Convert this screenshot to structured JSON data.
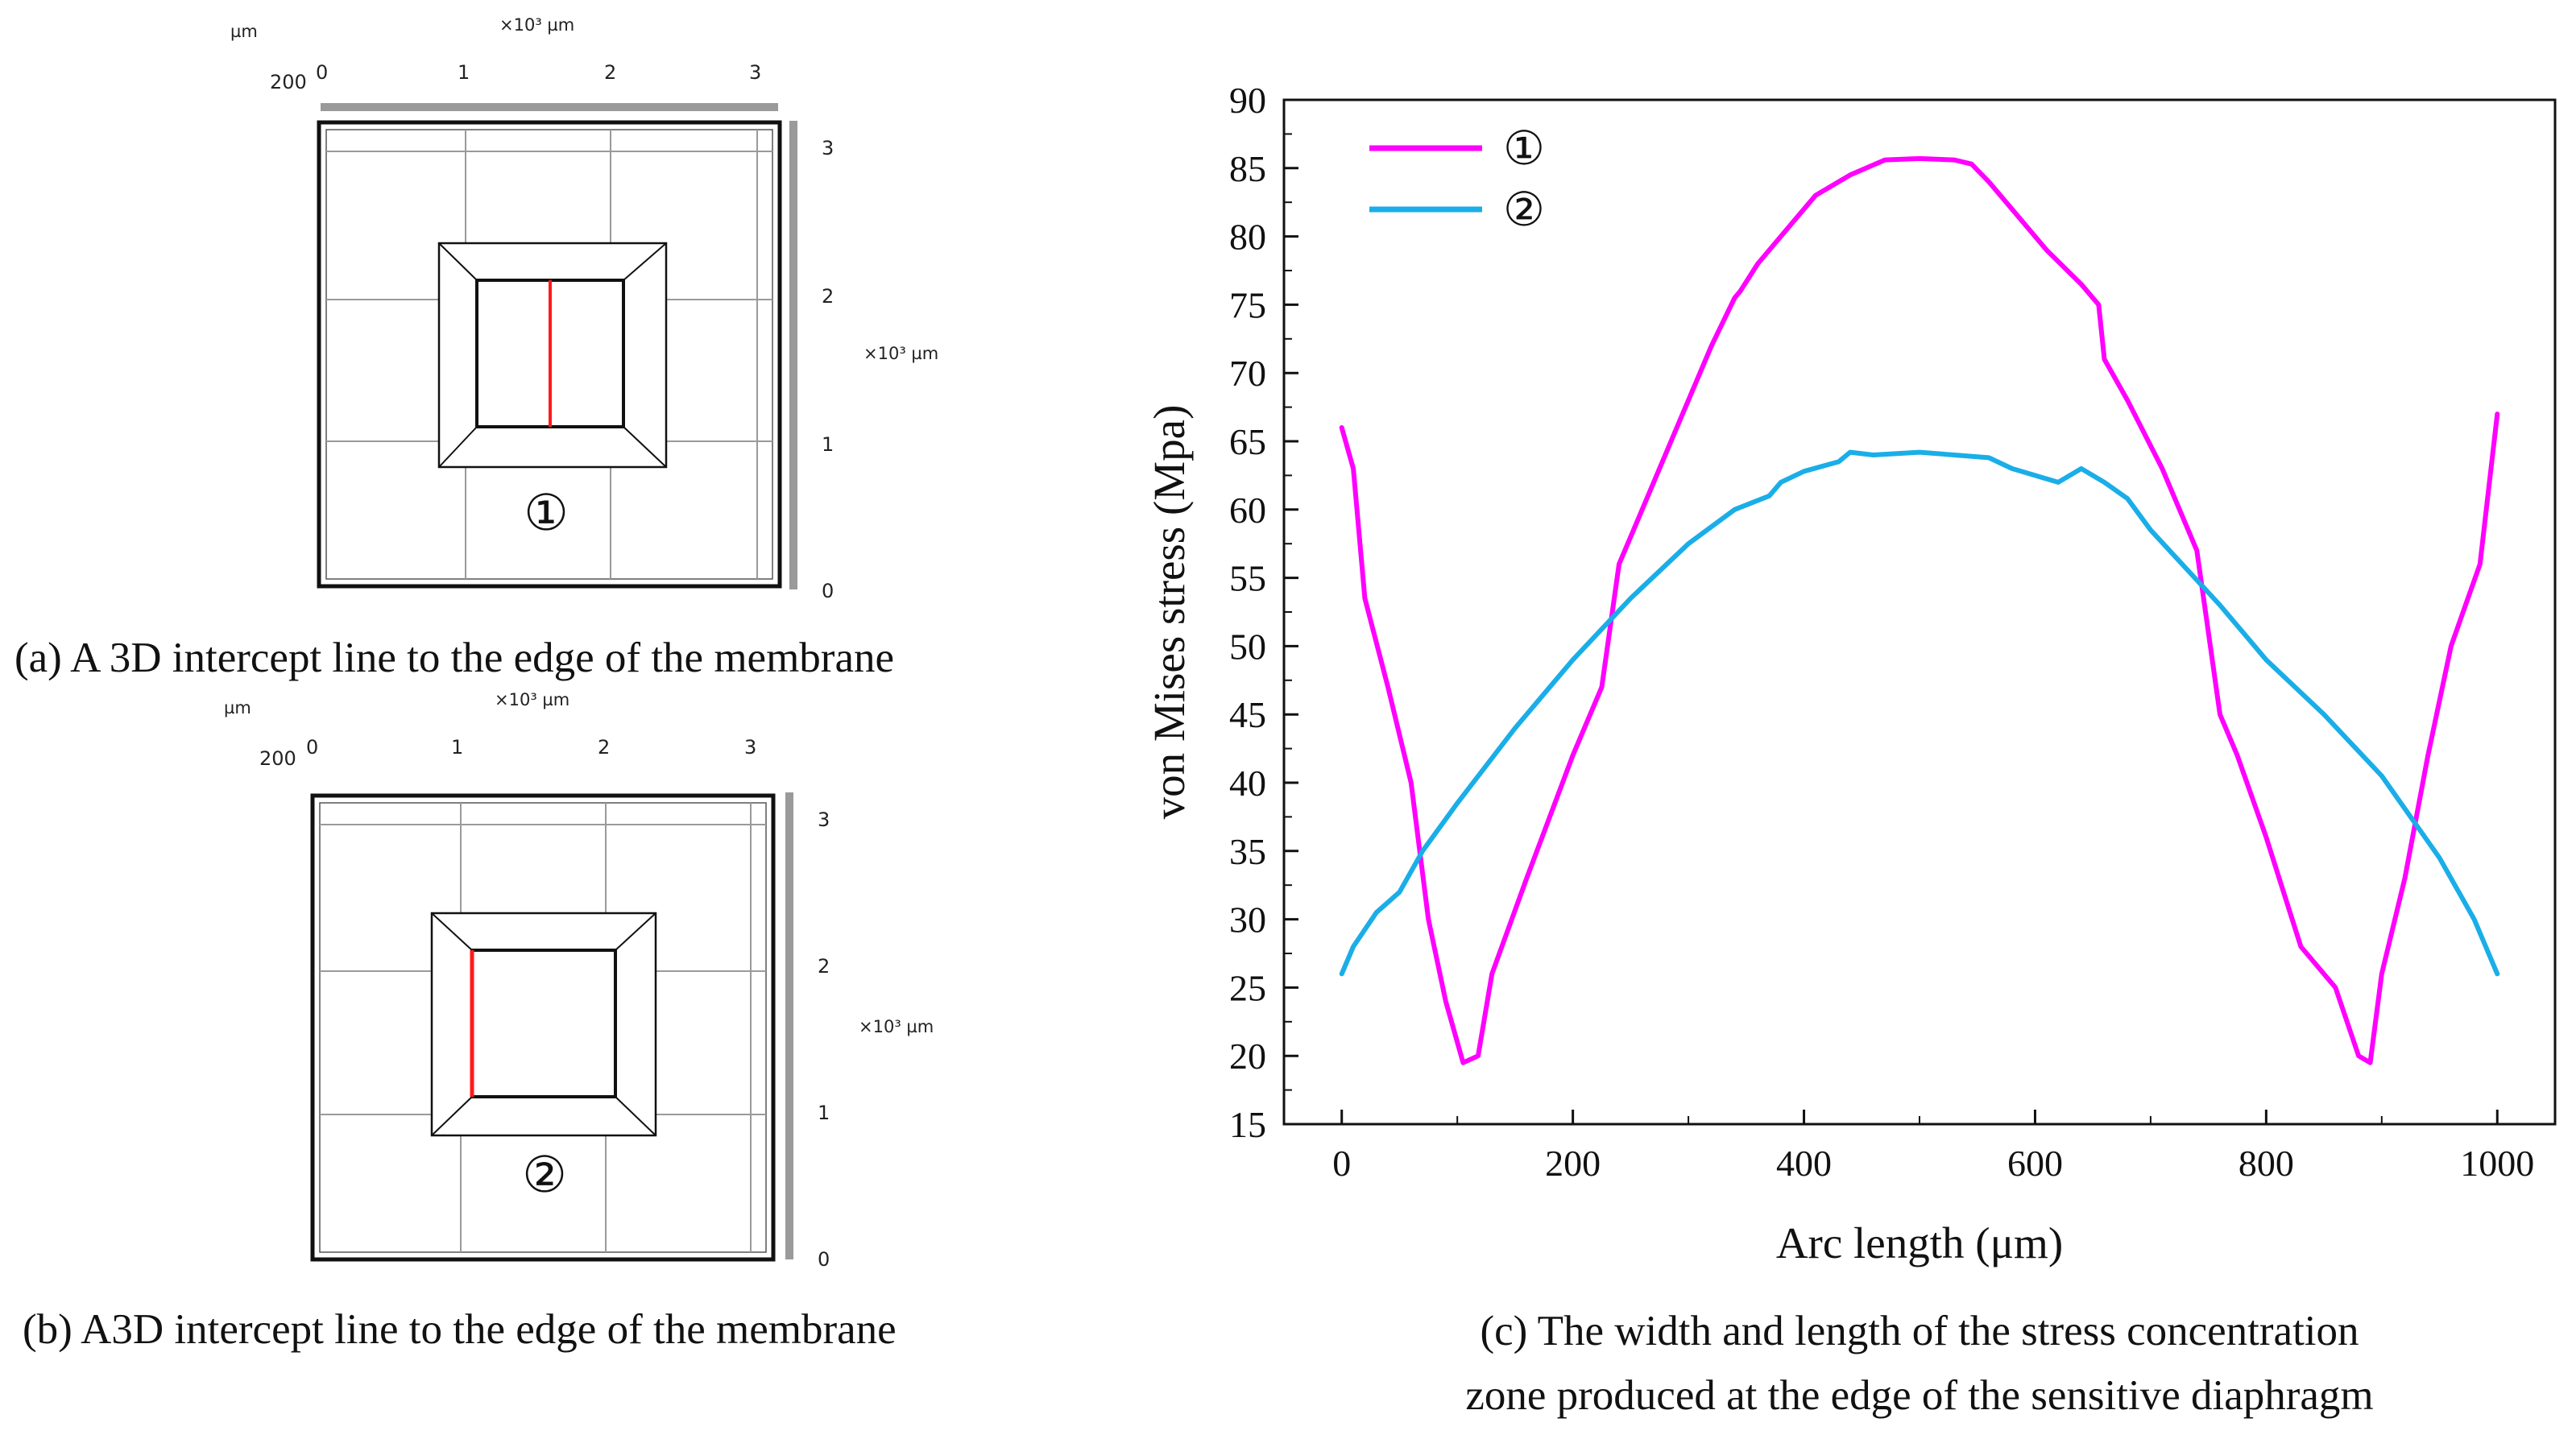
{
  "panels": {
    "a": {
      "caption": "(a) A 3D intercept line to the edge of the membrane",
      "unit_left": "µm",
      "unit_top": "×10³ µm",
      "unit_right": "×10³ µm",
      "corner_label": "200",
      "top_ticks": [
        "0",
        "1",
        "2",
        "3"
      ],
      "right_ticks": [
        "3",
        "2",
        "1",
        "0"
      ],
      "marker": "①",
      "line_color": "#ff1a1a"
    },
    "b": {
      "caption": "(b) A3D intercept line to the edge of the membrane",
      "unit_left": "µm",
      "unit_top": "×10³ µm",
      "unit_right": "×10³ µm",
      "corner_label": "200",
      "top_ticks": [
        "0",
        "1",
        "2",
        "3"
      ],
      "right_ticks": [
        "3",
        "2",
        "1",
        "0"
      ],
      "marker": "②",
      "line_color": "#ff1a1a"
    },
    "c": {
      "caption_line1": "(c) The width and length of the stress concentration",
      "caption_line2": "zone produced at the edge of the sensitive diaphragm"
    }
  },
  "chart_data": {
    "type": "line",
    "title": "",
    "xlabel": "Arc length (μm)",
    "ylabel": "von Mises stress (Mpa)",
    "xlim": [
      -50,
      1050
    ],
    "ylim": [
      15,
      90
    ],
    "xticks": [
      0,
      200,
      400,
      600,
      800,
      1000
    ],
    "yticks": [
      15,
      20,
      25,
      30,
      35,
      40,
      45,
      50,
      55,
      60,
      65,
      70,
      75,
      80,
      85,
      90
    ],
    "legend_position": "top-left",
    "series": [
      {
        "name": "①",
        "color": "#ff00ff",
        "x": [
          0,
          10,
          20,
          40,
          60,
          75,
          90,
          105,
          118,
          130,
          160,
          200,
          225,
          240,
          260,
          290,
          320,
          340,
          345,
          360,
          390,
          410,
          440,
          470,
          500,
          530,
          545,
          560,
          580,
          610,
          640,
          655,
          660,
          680,
          710,
          740,
          760,
          775,
          800,
          830,
          860,
          880,
          890,
          900,
          920,
          940,
          960,
          985,
          1000
        ],
        "values": [
          66,
          63,
          53.5,
          47,
          40,
          30,
          24,
          19.5,
          20,
          26,
          33,
          42,
          47,
          56,
          60,
          66,
          72,
          75.5,
          76,
          78,
          81,
          83,
          84.5,
          85.6,
          85.7,
          85.6,
          85.3,
          84,
          82,
          79,
          76.5,
          75,
          71,
          68,
          63,
          57,
          45,
          42,
          36,
          28,
          25,
          20,
          19.5,
          26,
          33,
          42,
          50,
          56,
          67
        ]
      },
      {
        "name": "②",
        "color": "#1aaee8",
        "x": [
          0,
          10,
          30,
          50,
          70,
          100,
          150,
          200,
          250,
          300,
          340,
          370,
          380,
          400,
          430,
          440,
          460,
          500,
          530,
          560,
          580,
          600,
          620,
          630,
          640,
          660,
          680,
          700,
          760,
          800,
          850,
          900,
          950,
          980,
          1000
        ],
        "values": [
          26,
          28,
          30.5,
          32,
          35,
          38.5,
          44,
          49,
          53.5,
          57.5,
          60,
          61,
          62,
          62.8,
          63.5,
          64.2,
          64,
          64.2,
          64,
          63.8,
          63,
          62.5,
          62,
          62.5,
          63,
          62,
          60.8,
          58.5,
          53,
          49,
          45,
          40.5,
          34.5,
          30,
          26
        ]
      }
    ]
  }
}
